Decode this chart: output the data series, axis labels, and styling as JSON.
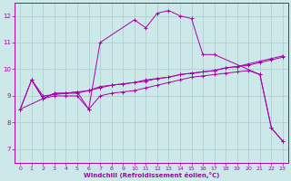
{
  "xlabel": "Windchill (Refroidissement éolien,°C)",
  "background_color": "#cce8e8",
  "grid_color": "#aacccc",
  "line_color": "#aa00aa",
  "xlim": [
    -0.5,
    23.5
  ],
  "ylim": [
    6.5,
    12.5
  ],
  "yticks": [
    7,
    8,
    9,
    10,
    11,
    12
  ],
  "xticks": [
    0,
    1,
    2,
    3,
    4,
    5,
    6,
    7,
    8,
    9,
    10,
    11,
    12,
    13,
    14,
    15,
    16,
    17,
    18,
    19,
    20,
    21,
    22,
    23
  ],
  "lines": [
    {
      "x": [
        0,
        1,
        2,
        3,
        4,
        5,
        6,
        7,
        10,
        11,
        12,
        13,
        14,
        15,
        16,
        17,
        21,
        22,
        23
      ],
      "y": [
        8.5,
        9.6,
        8.9,
        9.1,
        9.1,
        9.15,
        8.5,
        11.0,
        11.85,
        11.55,
        12.1,
        12.2,
        12.0,
        11.9,
        10.55,
        10.55,
        9.8,
        7.8,
        7.3
      ]
    },
    {
      "x": [
        0,
        1,
        2,
        3,
        4,
        5,
        6,
        7,
        8,
        9,
        10,
        11,
        12,
        13,
        14,
        15,
        16,
        17,
        18,
        19,
        20,
        21,
        22,
        23
      ],
      "y": [
        8.5,
        9.6,
        9.0,
        9.05,
        9.1,
        9.15,
        9.2,
        9.3,
        9.4,
        9.45,
        9.5,
        9.55,
        9.65,
        9.7,
        9.8,
        9.85,
        9.9,
        9.95,
        10.05,
        10.1,
        10.2,
        10.3,
        10.4,
        10.5
      ]
    },
    {
      "x": [
        1,
        2,
        3,
        4,
        5,
        6,
        7,
        8,
        9,
        10,
        11,
        12,
        13,
        14,
        15,
        16,
        17,
        18,
        19,
        20,
        21,
        22,
        23
      ],
      "y": [
        9.6,
        8.9,
        9.1,
        9.1,
        9.1,
        9.2,
        9.35,
        9.4,
        9.45,
        9.5,
        9.6,
        9.65,
        9.7,
        9.8,
        9.85,
        9.9,
        9.95,
        10.05,
        10.1,
        10.15,
        10.25,
        10.35,
        10.45
      ]
    },
    {
      "x": [
        0,
        2,
        3,
        4,
        5,
        6,
        7,
        8,
        9,
        10,
        11,
        12,
        13,
        14,
        15,
        16,
        17,
        18,
        19,
        20,
        21,
        22,
        23
      ],
      "y": [
        8.5,
        8.9,
        9.0,
        9.0,
        9.0,
        8.5,
        9.0,
        9.1,
        9.15,
        9.2,
        9.3,
        9.4,
        9.5,
        9.6,
        9.7,
        9.75,
        9.8,
        9.85,
        9.9,
        9.95,
        9.8,
        7.8,
        7.3
      ]
    }
  ]
}
